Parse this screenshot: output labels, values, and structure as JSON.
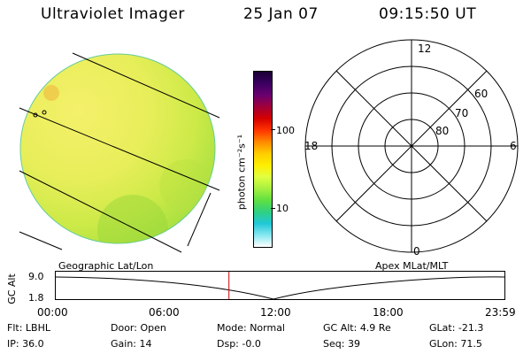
{
  "header": {
    "instrument": "Ultraviolet Imager",
    "date": "25 Jan 07",
    "time": "09:15:50 UT"
  },
  "colorbar": {
    "label": "photon cm⁻²s⁻¹",
    "ticks": [
      "100",
      "10"
    ],
    "colors": [
      "#1a0033",
      "#3a0060",
      "#6a0070",
      "#a0003a",
      "#d40000",
      "#ff3300",
      "#ff8800",
      "#ffcc00",
      "#ffee00",
      "#e0ff40",
      "#a8f040",
      "#60e040",
      "#30d080",
      "#20c8d8",
      "#88e8f0",
      "#ffffff"
    ]
  },
  "polar": {
    "mlt_labels": {
      "top": "12",
      "left": "18",
      "right": "6",
      "bottom": "0"
    },
    "lat_labels": [
      "60",
      "70",
      "80"
    ]
  },
  "timeline": {
    "ylabel": "GC Alt",
    "yticks": [
      "9.0",
      "1.8"
    ],
    "left_label": "Geographic Lat/Lon",
    "right_label": "Apex MLat/MLT",
    "xticks": [
      "00:00",
      "06:00",
      "12:00",
      "18:00",
      "23:59"
    ],
    "marker_time_fraction": 0.386
  },
  "status": {
    "rows": [
      [
        {
          "k": "Flt:",
          "v": "LBHL"
        },
        {
          "k": "Door:",
          "v": "Open"
        },
        {
          "k": "Mode:",
          "v": "Normal"
        },
        {
          "k": "GC Alt:",
          "v": "4.9 Re"
        },
        {
          "k": "GLat:",
          "v": "-21.3"
        }
      ],
      [
        {
          "k": "IP:",
          "v": "36.0"
        },
        {
          "k": "Gain:",
          "v": "14"
        },
        {
          "k": "Dsp:",
          "v": "-0.0"
        },
        {
          "k": "Seq:",
          "v": "39"
        },
        {
          "k": "GLon:",
          "v": "71.5"
        }
      ]
    ]
  }
}
